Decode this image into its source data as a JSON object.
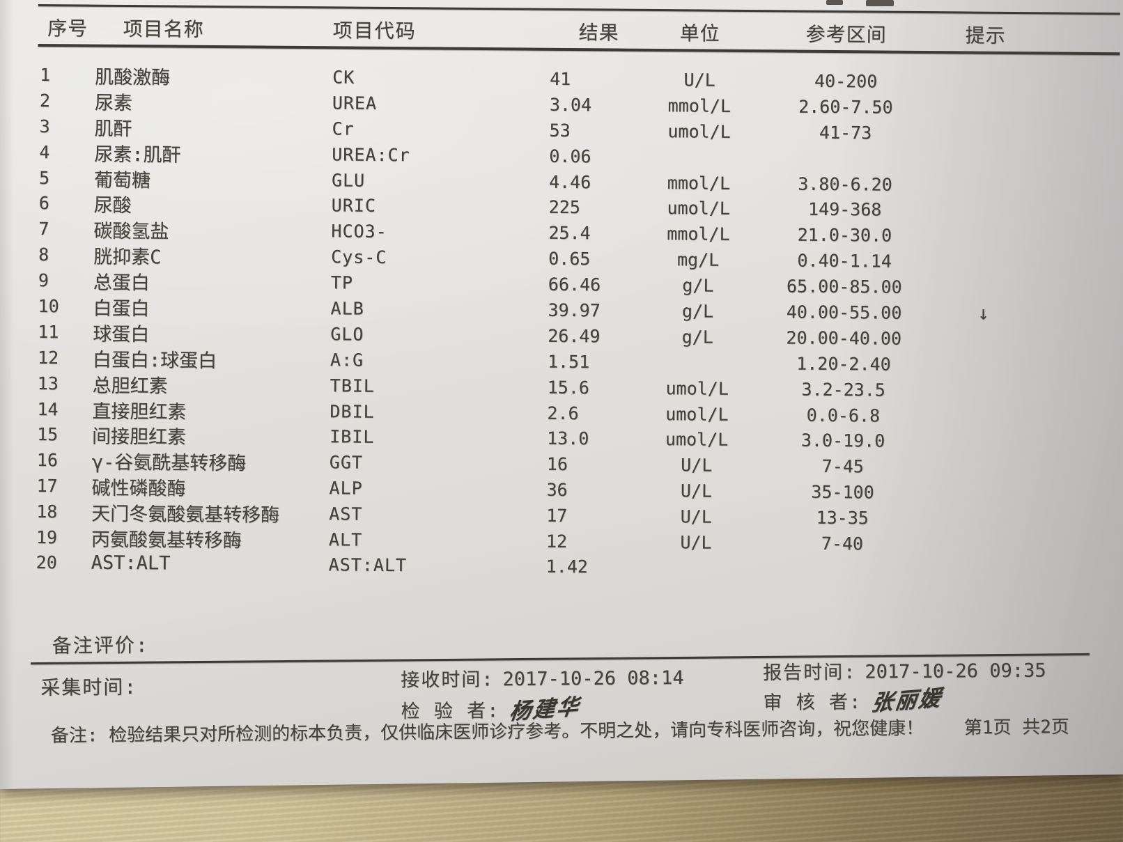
{
  "table": {
    "headers": [
      "序号",
      "项目名称",
      "项目代码",
      "结果",
      "单位",
      "参考区间",
      "提示"
    ],
    "rows": [
      {
        "no": "1",
        "name": "肌酸激酶",
        "code": "CK",
        "result": "41",
        "unit": "U/L",
        "range": "40-200",
        "flag": ""
      },
      {
        "no": "2",
        "name": "尿素",
        "code": "UREA",
        "result": "3.04",
        "unit": "mmol/L",
        "range": "2.60-7.50",
        "flag": ""
      },
      {
        "no": "3",
        "name": "肌酐",
        "code": "Cr",
        "result": "53",
        "unit": "umol/L",
        "range": "41-73",
        "flag": ""
      },
      {
        "no": "4",
        "name": "尿素:肌酐",
        "code": "UREA:Cr",
        "result": "0.06",
        "unit": "",
        "range": "",
        "flag": ""
      },
      {
        "no": "5",
        "name": "葡萄糖",
        "code": "GLU",
        "result": "4.46",
        "unit": "mmol/L",
        "range": "3.80-6.20",
        "flag": ""
      },
      {
        "no": "6",
        "name": "尿酸",
        "code": "URIC",
        "result": "225",
        "unit": "umol/L",
        "range": "149-368",
        "flag": ""
      },
      {
        "no": "7",
        "name": "碳酸氢盐",
        "code": "HCO3-",
        "result": "25.4",
        "unit": "mmol/L",
        "range": "21.0-30.0",
        "flag": ""
      },
      {
        "no": "8",
        "name": "胱抑素C",
        "code": "Cys-C",
        "result": "0.65",
        "unit": "mg/L",
        "range": "0.40-1.14",
        "flag": ""
      },
      {
        "no": "9",
        "name": "总蛋白",
        "code": "TP",
        "result": "66.46",
        "unit": "g/L",
        "range": "65.00-85.00",
        "flag": ""
      },
      {
        "no": "10",
        "name": "白蛋白",
        "code": "ALB",
        "result": "39.97",
        "unit": "g/L",
        "range": "40.00-55.00",
        "flag": "↓"
      },
      {
        "no": "11",
        "name": "球蛋白",
        "code": "GLO",
        "result": "26.49",
        "unit": "g/L",
        "range": "20.00-40.00",
        "flag": ""
      },
      {
        "no": "12",
        "name": "白蛋白:球蛋白",
        "code": "A:G",
        "result": "1.51",
        "unit": "",
        "range": "1.20-2.40",
        "flag": ""
      },
      {
        "no": "13",
        "name": "总胆红素",
        "code": "TBIL",
        "result": "15.6",
        "unit": "umol/L",
        "range": "3.2-23.5",
        "flag": ""
      },
      {
        "no": "14",
        "name": "直接胆红素",
        "code": "DBIL",
        "result": "2.6",
        "unit": "umol/L",
        "range": "0.0-6.8",
        "flag": ""
      },
      {
        "no": "15",
        "name": "间接胆红素",
        "code": "IBIL",
        "result": "13.0",
        "unit": "umol/L",
        "range": "3.0-19.0",
        "flag": ""
      },
      {
        "no": "16",
        "name": "γ-谷氨酰基转移酶",
        "code": "GGT",
        "result": "16",
        "unit": "U/L",
        "range": "7-45",
        "flag": ""
      },
      {
        "no": "17",
        "name": "碱性磷酸酶",
        "code": "ALP",
        "result": "36",
        "unit": "U/L",
        "range": "35-100",
        "flag": ""
      },
      {
        "no": "18",
        "name": "天门冬氨酸氨基转移酶",
        "code": "AST",
        "result": "17",
        "unit": "U/L",
        "range": "13-35",
        "flag": ""
      },
      {
        "no": "19",
        "name": "丙氨酸氨基转移酶",
        "code": "ALT",
        "result": "12",
        "unit": "U/L",
        "range": "7-40",
        "flag": ""
      },
      {
        "no": "20",
        "name": "AST:ALT",
        "code": "AST:ALT",
        "result": "1.42",
        "unit": "",
        "range": "",
        "flag": ""
      }
    ]
  },
  "footer": {
    "remark_eval_label": "备注评价:",
    "collect_time_label": "采集时间:",
    "receive_time_label": "接收时间:",
    "receive_time_value": "2017-10-26 08:14",
    "report_time_label": "报告时间:",
    "report_time_value": "2017-10-26 09:35",
    "inspector_label": "检 验 者:",
    "inspector_signature": "杨建华",
    "reviewer_label": "审 核 者:",
    "reviewer_signature": "张丽媛",
    "note_label": "备注:",
    "note_text": "检验结果只对所检测的标本负责，仅供临床医师诊疗参考。不明之处，请向专科医师咨询，祝您健康！",
    "page_info": "第1页 共2页"
  },
  "colors": {
    "paper": "#e4e2df",
    "ink": "#44413d",
    "wood_light": "#d9cfa6",
    "wood_dark": "#6b5d40"
  }
}
